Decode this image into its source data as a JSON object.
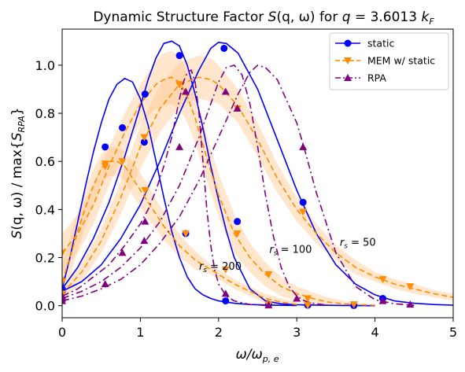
{
  "chart_data": {
    "type": "line",
    "title": "Dynamic Structure Factor S(q, ω) for q = 3.6013 k_F",
    "title_parts": {
      "prefix": "Dynamic Structure Factor ",
      "s": "S",
      "args": "(q, ω)",
      "mid": " for ",
      "q": "q",
      "eq": " = 3.6013 ",
      "k": "k",
      "sub": "F"
    },
    "xlabel": "ω/ω_{p,e}",
    "xlabel_parts": {
      "main": "ω/ω",
      "sub": "p, e"
    },
    "ylabel": "S(q, ω) / max{S_RPA}",
    "ylabel_parts": {
      "pre": "S",
      "args": "(q, ω) / max{",
      "s": "S",
      "sub": "RPA",
      "post": "}"
    },
    "xlim": [
      0,
      5
    ],
    "ylim": [
      -0.05,
      1.15
    ],
    "xticks": [
      0,
      1,
      2,
      3,
      4,
      5
    ],
    "yticks": [
      0.0,
      0.2,
      0.4,
      0.6,
      0.8,
      1.0
    ],
    "xtick_labels": [
      "0",
      "1",
      "2",
      "3",
      "4",
      "5"
    ],
    "ytick_labels": [
      "0.0",
      "0.2",
      "0.4",
      "0.6",
      "0.8",
      "1.0"
    ],
    "grid": false,
    "legend_position": "top-right",
    "legend": [
      {
        "label": "static",
        "color": "#0000ff",
        "marker": "circle",
        "linestyle": "solid"
      },
      {
        "label": "MEM w/ static",
        "color": "#ff8c00",
        "marker": "triangle-down",
        "linestyle": "dashed"
      },
      {
        "label": "RPA",
        "color": "#800080",
        "marker": "triangle-up",
        "linestyle": "dashdot"
      }
    ],
    "annotations": [
      {
        "text": "r_s = 200",
        "pre": "r",
        "sub": "s",
        "post": " = 200",
        "x": 1.75,
        "y": 0.15
      },
      {
        "text": "r_s = 100",
        "pre": "r",
        "sub": "s",
        "post": " = 100",
        "x": 2.65,
        "y": 0.22
      },
      {
        "text": "r_s = 50",
        "pre": "r",
        "sub": "s",
        "post": " = 50",
        "x": 3.55,
        "y": 0.25
      }
    ],
    "series": [
      {
        "group": "static",
        "rs": 200,
        "color": "#0000ff",
        "style": "solid",
        "marker": "circle",
        "x": [
          0.0,
          0.1,
          0.2,
          0.3,
          0.4,
          0.5,
          0.6,
          0.7,
          0.8,
          0.9,
          1.0,
          1.1,
          1.2,
          1.3,
          1.4,
          1.5,
          1.6,
          1.7,
          1.8,
          1.9,
          2.0,
          2.1,
          2.2,
          2.4,
          2.7,
          3.0
        ],
        "y": [
          0.07,
          0.2,
          0.35,
          0.5,
          0.64,
          0.76,
          0.86,
          0.92,
          0.945,
          0.93,
          0.86,
          0.75,
          0.6,
          0.45,
          0.31,
          0.2,
          0.12,
          0.07,
          0.045,
          0.03,
          0.02,
          0.015,
          0.01,
          0.005,
          0.002,
          0.001
        ],
        "markers_x": [
          0.0,
          0.55,
          0.77,
          1.06,
          1.58,
          2.09
        ],
        "markers_y": [
          0.07,
          0.66,
          0.74,
          0.88,
          0.3,
          0.02
        ]
      },
      {
        "group": "static",
        "rs": 100,
        "color": "#0000ff",
        "style": "solid",
        "marker": "circle",
        "x": [
          0.0,
          0.2,
          0.4,
          0.6,
          0.8,
          1.0,
          1.1,
          1.2,
          1.3,
          1.4,
          1.5,
          1.6,
          1.7,
          1.8,
          1.9,
          2.0,
          2.1,
          2.2,
          2.4,
          2.6,
          2.8,
          3.0,
          3.3,
          3.6,
          4.0
        ],
        "y": [
          0.07,
          0.16,
          0.28,
          0.43,
          0.62,
          0.83,
          0.94,
          1.03,
          1.09,
          1.1,
          1.08,
          1.0,
          0.88,
          0.74,
          0.58,
          0.44,
          0.31,
          0.2,
          0.07,
          0.02,
          0.008,
          0.004,
          0.002,
          0.001,
          0.0
        ],
        "markers_x": [
          0.0,
          1.05,
          1.5,
          2.24,
          2.64,
          3.14,
          3.73
        ],
        "markers_y": [
          0.07,
          0.68,
          1.04,
          0.35,
          0.005,
          0.002,
          0.001
        ]
      },
      {
        "group": "static",
        "rs": 50,
        "color": "#0000ff",
        "style": "solid",
        "marker": "circle",
        "x": [
          0.0,
          0.25,
          0.5,
          0.75,
          1.0,
          1.25,
          1.5,
          1.75,
          1.9,
          2.0,
          2.1,
          2.25,
          2.5,
          2.75,
          3.0,
          3.25,
          3.5,
          3.75,
          4.0,
          4.25,
          4.5,
          4.75,
          5.0
        ],
        "y": [
          0.06,
          0.1,
          0.17,
          0.28,
          0.42,
          0.6,
          0.8,
          0.98,
          1.07,
          1.095,
          1.09,
          1.05,
          0.9,
          0.69,
          0.48,
          0.3,
          0.17,
          0.09,
          0.045,
          0.02,
          0.01,
          0.005,
          0.002
        ],
        "markers_x": [
          0.0,
          2.07,
          3.08,
          4.1
        ],
        "markers_y": [
          0.06,
          1.07,
          0.43,
          0.03
        ]
      },
      {
        "group": "MEM w/ static",
        "rs": 200,
        "color": "#ff8c00",
        "style": "dashed",
        "marker": "triangle-down",
        "x": [
          0.0,
          0.1,
          0.2,
          0.3,
          0.4,
          0.5,
          0.6,
          0.7,
          0.8,
          0.9,
          1.0,
          1.1,
          1.2,
          1.3,
          1.4,
          1.5,
          1.6,
          1.7,
          1.8,
          1.9,
          2.0,
          2.1,
          2.2,
          2.4,
          2.6,
          2.8,
          3.0
        ],
        "y": [
          0.1,
          0.2,
          0.31,
          0.41,
          0.5,
          0.57,
          0.6,
          0.6,
          0.58,
          0.53,
          0.48,
          0.43,
          0.38,
          0.33,
          0.29,
          0.25,
          0.22,
          0.19,
          0.17,
          0.15,
          0.13,
          0.11,
          0.09,
          0.06,
          0.03,
          0.015,
          0.005
        ],
        "markers_x": [
          0.0,
          0.55,
          0.77,
          1.06,
          1.58,
          2.09,
          2.64,
          3.14
        ],
        "markers_y": [
          0.1,
          0.58,
          0.6,
          0.48,
          0.3,
          0.15,
          0.005,
          0.002
        ],
        "band_upper": [
          0.17,
          0.28,
          0.39,
          0.49,
          0.57,
          0.63,
          0.66,
          0.66,
          0.64,
          0.6,
          0.55,
          0.5,
          0.44,
          0.39,
          0.34,
          0.3,
          0.26,
          0.23,
          0.2,
          0.17,
          0.15,
          0.13,
          0.11,
          0.08,
          0.05,
          0.03,
          0.015
        ],
        "band_lower": [
          0.03,
          0.12,
          0.23,
          0.33,
          0.43,
          0.51,
          0.54,
          0.54,
          0.52,
          0.46,
          0.41,
          0.36,
          0.32,
          0.27,
          0.24,
          0.2,
          0.18,
          0.15,
          0.14,
          0.13,
          0.11,
          0.09,
          0.07,
          0.04,
          0.01,
          0.0,
          0.0
        ]
      },
      {
        "group": "MEM w/ static",
        "rs": 100,
        "color": "#ff8c00",
        "style": "dashed",
        "marker": "triangle-down",
        "x": [
          0.0,
          0.2,
          0.4,
          0.6,
          0.8,
          1.0,
          1.2,
          1.3,
          1.4,
          1.5,
          1.6,
          1.7,
          1.8,
          1.9,
          2.0,
          2.2,
          2.4,
          2.6,
          2.8,
          3.0,
          3.2,
          3.4,
          3.6,
          3.8,
          4.0
        ],
        "y": [
          0.22,
          0.3,
          0.42,
          0.58,
          0.72,
          0.84,
          0.92,
          0.94,
          0.95,
          0.93,
          0.87,
          0.78,
          0.67,
          0.56,
          0.46,
          0.3,
          0.2,
          0.13,
          0.08,
          0.05,
          0.03,
          0.015,
          0.008,
          0.004,
          0.002
        ],
        "markers_x": [
          0.0,
          0.55,
          1.05,
          1.5,
          2.24,
          2.64,
          3.14,
          3.73
        ],
        "markers_y": [
          0.22,
          0.59,
          0.7,
          0.92,
          0.3,
          0.13,
          0.03,
          0.005
        ],
        "band_upper": [
          0.3,
          0.38,
          0.5,
          0.66,
          0.8,
          0.92,
          1.02,
          1.05,
          1.06,
          1.04,
          0.98,
          0.88,
          0.77,
          0.65,
          0.55,
          0.38,
          0.26,
          0.18,
          0.12,
          0.08,
          0.055,
          0.035,
          0.02,
          0.01,
          0.005
        ],
        "band_lower": [
          0.14,
          0.22,
          0.34,
          0.5,
          0.64,
          0.76,
          0.82,
          0.83,
          0.84,
          0.82,
          0.76,
          0.68,
          0.57,
          0.47,
          0.37,
          0.22,
          0.14,
          0.08,
          0.04,
          0.02,
          0.005,
          0.0,
          0.0,
          0.0,
          0.0
        ]
      },
      {
        "group": "MEM w/ static",
        "rs": 50,
        "color": "#ff8c00",
        "style": "dashed",
        "marker": "triangle-down",
        "x": [
          0.0,
          0.25,
          0.5,
          0.75,
          1.0,
          1.25,
          1.5,
          1.75,
          1.9,
          2.0,
          2.25,
          2.5,
          2.75,
          3.0,
          3.25,
          3.5,
          3.75,
          4.0,
          4.25,
          4.5,
          4.75,
          5.0
        ],
        "y": [
          0.05,
          0.14,
          0.27,
          0.45,
          0.66,
          0.82,
          0.92,
          0.95,
          0.94,
          0.92,
          0.83,
          0.69,
          0.53,
          0.4,
          0.3,
          0.22,
          0.16,
          0.12,
          0.09,
          0.07,
          0.05,
          0.035
        ],
        "markers_x": [
          0.0,
          1.5,
          2.24,
          3.08,
          4.1,
          4.45
        ],
        "markers_y": [
          0.05,
          0.92,
          0.82,
          0.39,
          0.11,
          0.08
        ],
        "band_upper": [
          0.08,
          0.18,
          0.32,
          0.52,
          0.75,
          0.92,
          1.01,
          1.04,
          1.03,
          1.0,
          0.9,
          0.76,
          0.59,
          0.45,
          0.34,
          0.25,
          0.19,
          0.14,
          0.11,
          0.09,
          0.065,
          0.05
        ],
        "band_lower": [
          0.02,
          0.1,
          0.22,
          0.38,
          0.57,
          0.72,
          0.83,
          0.86,
          0.85,
          0.84,
          0.76,
          0.62,
          0.47,
          0.35,
          0.26,
          0.19,
          0.13,
          0.1,
          0.07,
          0.05,
          0.035,
          0.02
        ]
      },
      {
        "group": "RPA",
        "rs": 200,
        "color": "#800080",
        "style": "dashdot",
        "marker": "triangle-up",
        "x": [
          0.0,
          0.2,
          0.4,
          0.6,
          0.8,
          1.0,
          1.1,
          1.2,
          1.3,
          1.4,
          1.5,
          1.55,
          1.6,
          1.65,
          1.7,
          1.75,
          1.8,
          1.85,
          1.9,
          1.95,
          2.0,
          2.1,
          2.2,
          2.4,
          2.6
        ],
        "y": [
          0.04,
          0.07,
          0.12,
          0.17,
          0.25,
          0.34,
          0.4,
          0.48,
          0.58,
          0.7,
          0.86,
          0.93,
          0.97,
          0.98,
          0.93,
          0.8,
          0.6,
          0.4,
          0.25,
          0.15,
          0.09,
          0.04,
          0.02,
          0.005,
          0.001
        ],
        "markers_x": [
          0.0,
          0.55,
          1.06,
          1.5,
          1.58,
          2.09,
          2.64
        ],
        "markers_y": [
          0.04,
          0.09,
          0.35,
          0.66,
          0.89,
          0.05,
          0.002
        ]
      },
      {
        "group": "RPA",
        "rs": 100,
        "color": "#800080",
        "style": "dashdot",
        "marker": "triangle-up",
        "x": [
          0.0,
          0.25,
          0.5,
          0.75,
          1.0,
          1.25,
          1.5,
          1.75,
          1.9,
          2.0,
          2.1,
          2.2,
          2.3,
          2.4,
          2.5,
          2.6,
          2.7,
          2.8,
          2.9,
          3.0,
          3.1,
          3.2,
          3.4
        ],
        "y": [
          0.03,
          0.06,
          0.1,
          0.16,
          0.24,
          0.35,
          0.5,
          0.7,
          0.84,
          0.93,
          0.99,
          1.0,
          0.96,
          0.84,
          0.66,
          0.46,
          0.29,
          0.16,
          0.08,
          0.04,
          0.02,
          0.01,
          0.002
        ],
        "markers_x": [
          0.0,
          0.77,
          1.05,
          2.09,
          2.24,
          3.0
        ],
        "markers_y": [
          0.03,
          0.22,
          0.27,
          0.89,
          0.82,
          0.03
        ]
      },
      {
        "group": "RPA",
        "rs": 50,
        "color": "#800080",
        "style": "dashdot",
        "marker": "triangle-up",
        "x": [
          0.0,
          0.25,
          0.5,
          0.75,
          1.0,
          1.25,
          1.5,
          1.75,
          2.0,
          2.25,
          2.4,
          2.5,
          2.6,
          2.75,
          3.0,
          3.1,
          3.25,
          3.5,
          3.75,
          4.0,
          4.25,
          4.5
        ],
        "y": [
          0.02,
          0.04,
          0.07,
          0.11,
          0.17,
          0.26,
          0.37,
          0.52,
          0.7,
          0.88,
          0.97,
          1.0,
          0.99,
          0.94,
          0.76,
          0.65,
          0.47,
          0.22,
          0.08,
          0.025,
          0.008,
          0.002
        ],
        "markers_x": [
          0.0,
          3.08,
          4.1,
          4.45
        ],
        "markers_y": [
          0.02,
          0.66,
          0.02,
          0.005
        ]
      }
    ]
  }
}
